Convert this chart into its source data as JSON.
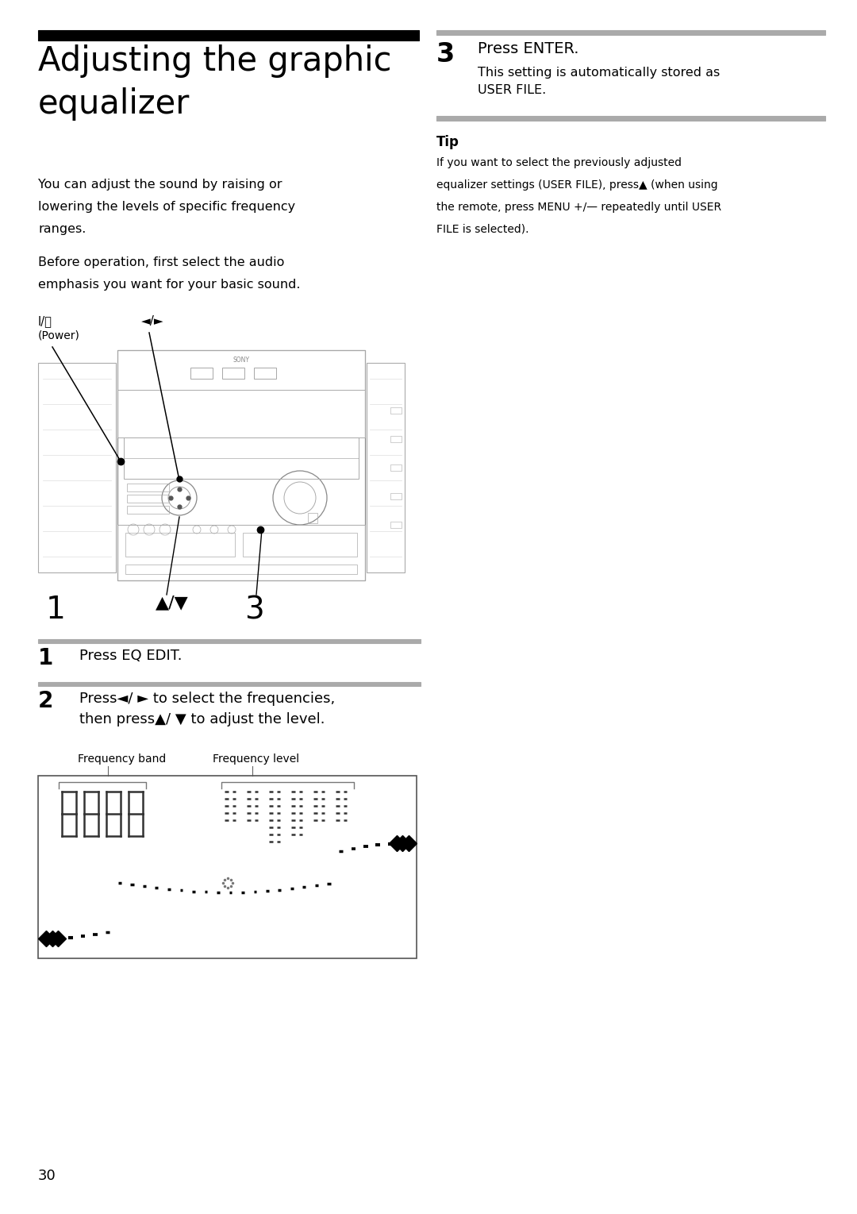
{
  "bg_color": "#ffffff",
  "page_number": "30",
  "title_line1": "Adjusting the graphic",
  "title_line2": "equalizer",
  "intro_text1_lines": [
    "You can adjust the sound by raising or",
    "lowering the levels of specific frequency",
    "ranges."
  ],
  "intro_text2_lines": [
    "Before operation, first select the audio",
    "emphasis you want for your basic sound."
  ],
  "label_power_line1": "I/ⓘ",
  "label_power_line2": "(Power)",
  "label_arrows": "◄/►",
  "step1_num": "1",
  "step1_text": "Press EQ EDIT.",
  "step2_num": "2",
  "step2_line1": "Press◄/ ► to select the frequencies,",
  "step2_line2": "then press▲/ ▼ to adjust the level.",
  "freq_band_label": "Frequency band",
  "freq_level_label": "Frequency level",
  "step3_num": "3",
  "step3_text": "Press ENTER.",
  "step3_sub_line1": "This setting is automatically stored as",
  "step3_sub_line2": "USER FILE.",
  "tip_title": "Tip",
  "tip_lines": [
    "If you want to select the previously adjusted",
    "equalizer settings (USER FILE), press▲ (when using",
    "the remote, press MENU +/— repeatedly until USER",
    "FILE is selected)."
  ]
}
